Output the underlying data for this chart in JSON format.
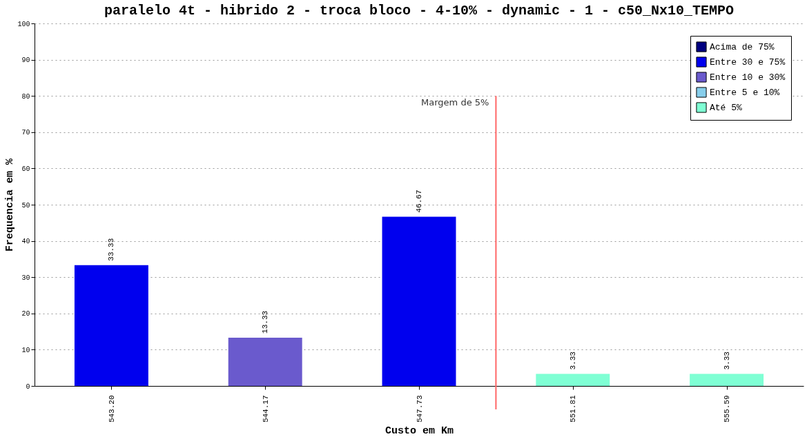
{
  "chart_data": {
    "type": "bar",
    "title": "paralelo 4t - hibrido 2 - troca bloco - 4-10% - dynamic - 1 - c50_Nx10_TEMPO",
    "xlabel": "Custo em Km",
    "ylabel": "Frequencia em %",
    "categories": [
      "543.20",
      "544.17",
      "547.73",
      "551.81",
      "555.59"
    ],
    "series": [
      {
        "name": "Acima de 75%",
        "color": "#000080",
        "values": [
          null,
          null,
          null,
          null,
          null
        ]
      },
      {
        "name": "Entre 30 e 75%",
        "color": "#0000ee",
        "values": [
          33.33,
          null,
          46.67,
          null,
          null
        ]
      },
      {
        "name": "Entre 10 e 30%",
        "color": "#6a5acd",
        "values": [
          null,
          13.33,
          null,
          null,
          null
        ]
      },
      {
        "name": "Entre 5 e 10%",
        "color": "#87ceeb",
        "values": [
          null,
          null,
          null,
          null,
          null
        ]
      },
      {
        "name": "Até 5%",
        "color": "#7fffd4",
        "values": [
          null,
          null,
          null,
          3.33,
          3.33
        ]
      }
    ],
    "ylim": [
      0,
      100
    ],
    "yticks": [
      0,
      10,
      20,
      30,
      40,
      50,
      60,
      70,
      80,
      90,
      100
    ],
    "grid": "y",
    "legend": "top right",
    "data_labels": true,
    "ref_lines": [
      {
        "axis": "x",
        "value": "551.81",
        "label": "Margem de 5%",
        "color": "#ff6666"
      }
    ]
  }
}
